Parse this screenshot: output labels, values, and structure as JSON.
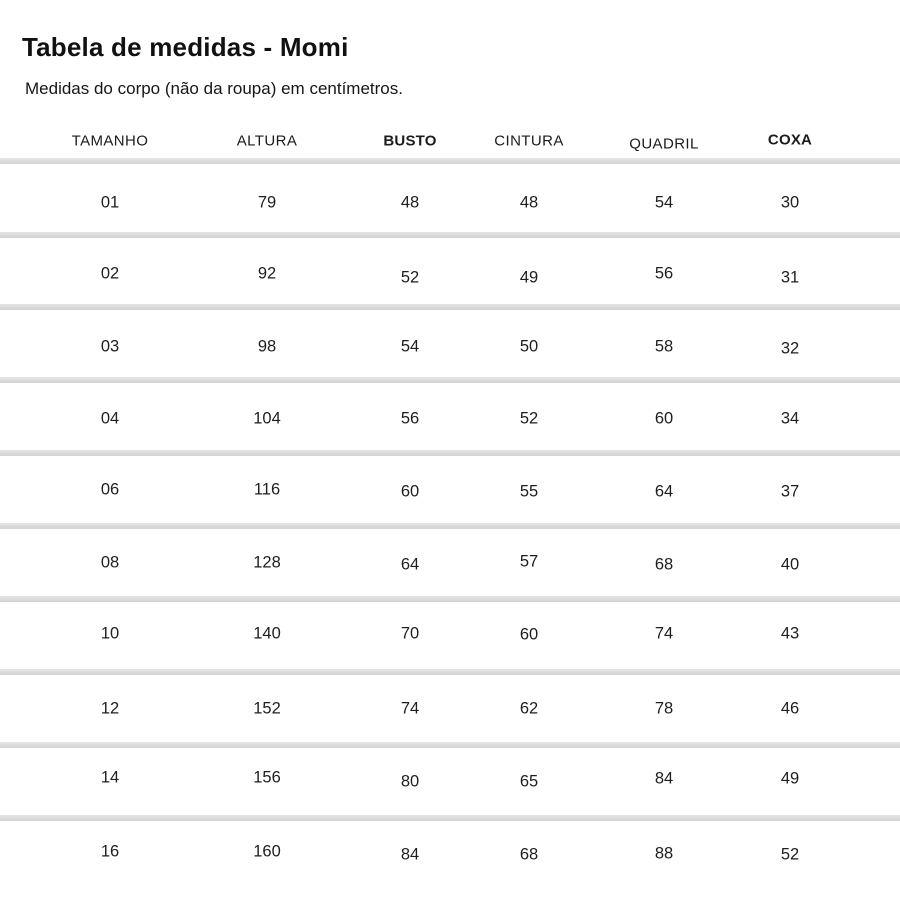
{
  "page": {
    "title": "Tabela de medidas - Momi",
    "subtitle": "Medidas do corpo (não da roupa) em centímetros."
  },
  "table": {
    "columns": [
      {
        "label": "TAMANHO",
        "emphasis": false
      },
      {
        "label": "ALTURA",
        "emphasis": false
      },
      {
        "label": "BUSTO",
        "emphasis": true
      },
      {
        "label": "CINTURA",
        "emphasis": false
      },
      {
        "label": "QUADRIL",
        "emphasis": false
      },
      {
        "label": "COXA",
        "emphasis": true
      }
    ],
    "rows": [
      [
        "01",
        "79",
        "48",
        "48",
        "54",
        "30"
      ],
      [
        "02",
        "92",
        "52",
        "49",
        "56",
        "31"
      ],
      [
        "03",
        "98",
        "54",
        "50",
        "58",
        "32"
      ],
      [
        "04",
        "104",
        "56",
        "52",
        "60",
        "34"
      ],
      [
        "06",
        "116",
        "60",
        "55",
        "64",
        "37"
      ],
      [
        "08",
        "128",
        "64",
        "57",
        "68",
        "40"
      ],
      [
        "10",
        "140",
        "70",
        "60",
        "74",
        "43"
      ],
      [
        "12",
        "152",
        "74",
        "62",
        "78",
        "46"
      ],
      [
        "14",
        "156",
        "80",
        "65",
        "84",
        "49"
      ],
      [
        "16",
        "160",
        "84",
        "68",
        "88",
        "52"
      ]
    ],
    "unit": "centímetros"
  },
  "colors": {
    "background": "#ffffff",
    "text": "#1b1b1b",
    "divider": "#d6d6d6"
  }
}
